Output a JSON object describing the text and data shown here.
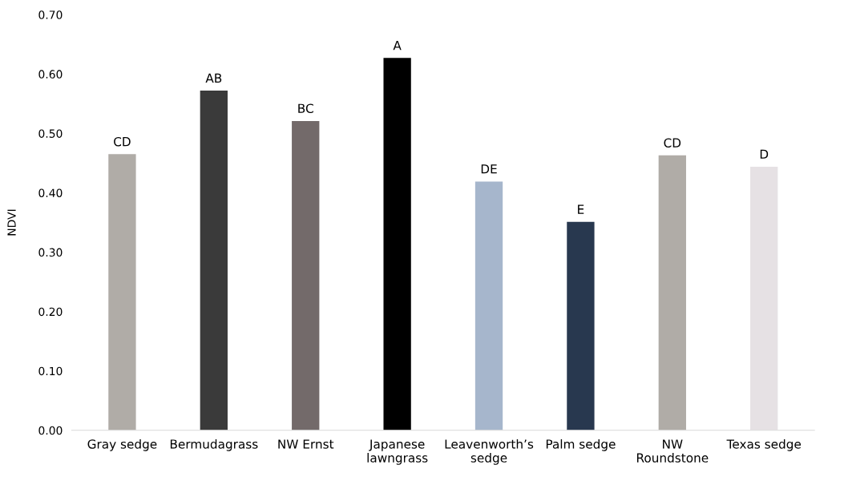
{
  "chart_data": {
    "type": "bar",
    "ylabel": "NDVI",
    "categories": [
      "Gray sedge",
      "Bermudagrass",
      "NW Ernst",
      "Japanese\nlawngrass",
      "Leavenworth’s\nsedge",
      "Palm sedge",
      "NW\nRoundstone",
      "Texas sedge"
    ],
    "values": [
      0.465,
      0.572,
      0.521,
      0.627,
      0.419,
      0.351,
      0.463,
      0.444
    ],
    "colors": [
      "#b0aca7",
      "#3a3a3a",
      "#736a6a",
      "#000000",
      "#a6b6cc",
      "#28384f",
      "#b0aca7",
      "#e6e1e4"
    ],
    "value_labels": [
      "CD",
      "AB",
      "BC",
      "A",
      "DE",
      "E",
      "CD",
      "D"
    ],
    "ylim": [
      0,
      0.7
    ],
    "yticks": [
      {
        "value": 0,
        "label": "0.00"
      },
      {
        "value": 0.1,
        "label": "0.10"
      },
      {
        "value": 0.2,
        "label": "0.20"
      },
      {
        "value": 0.3,
        "label": "0.30"
      },
      {
        "value": 0.4,
        "label": "0.40"
      },
      {
        "value": 0.5,
        "label": "0.50"
      },
      {
        "value": 0.6,
        "label": "0.60"
      },
      {
        "value": 0.7,
        "label": "0.70"
      }
    ],
    "grid": false
  }
}
